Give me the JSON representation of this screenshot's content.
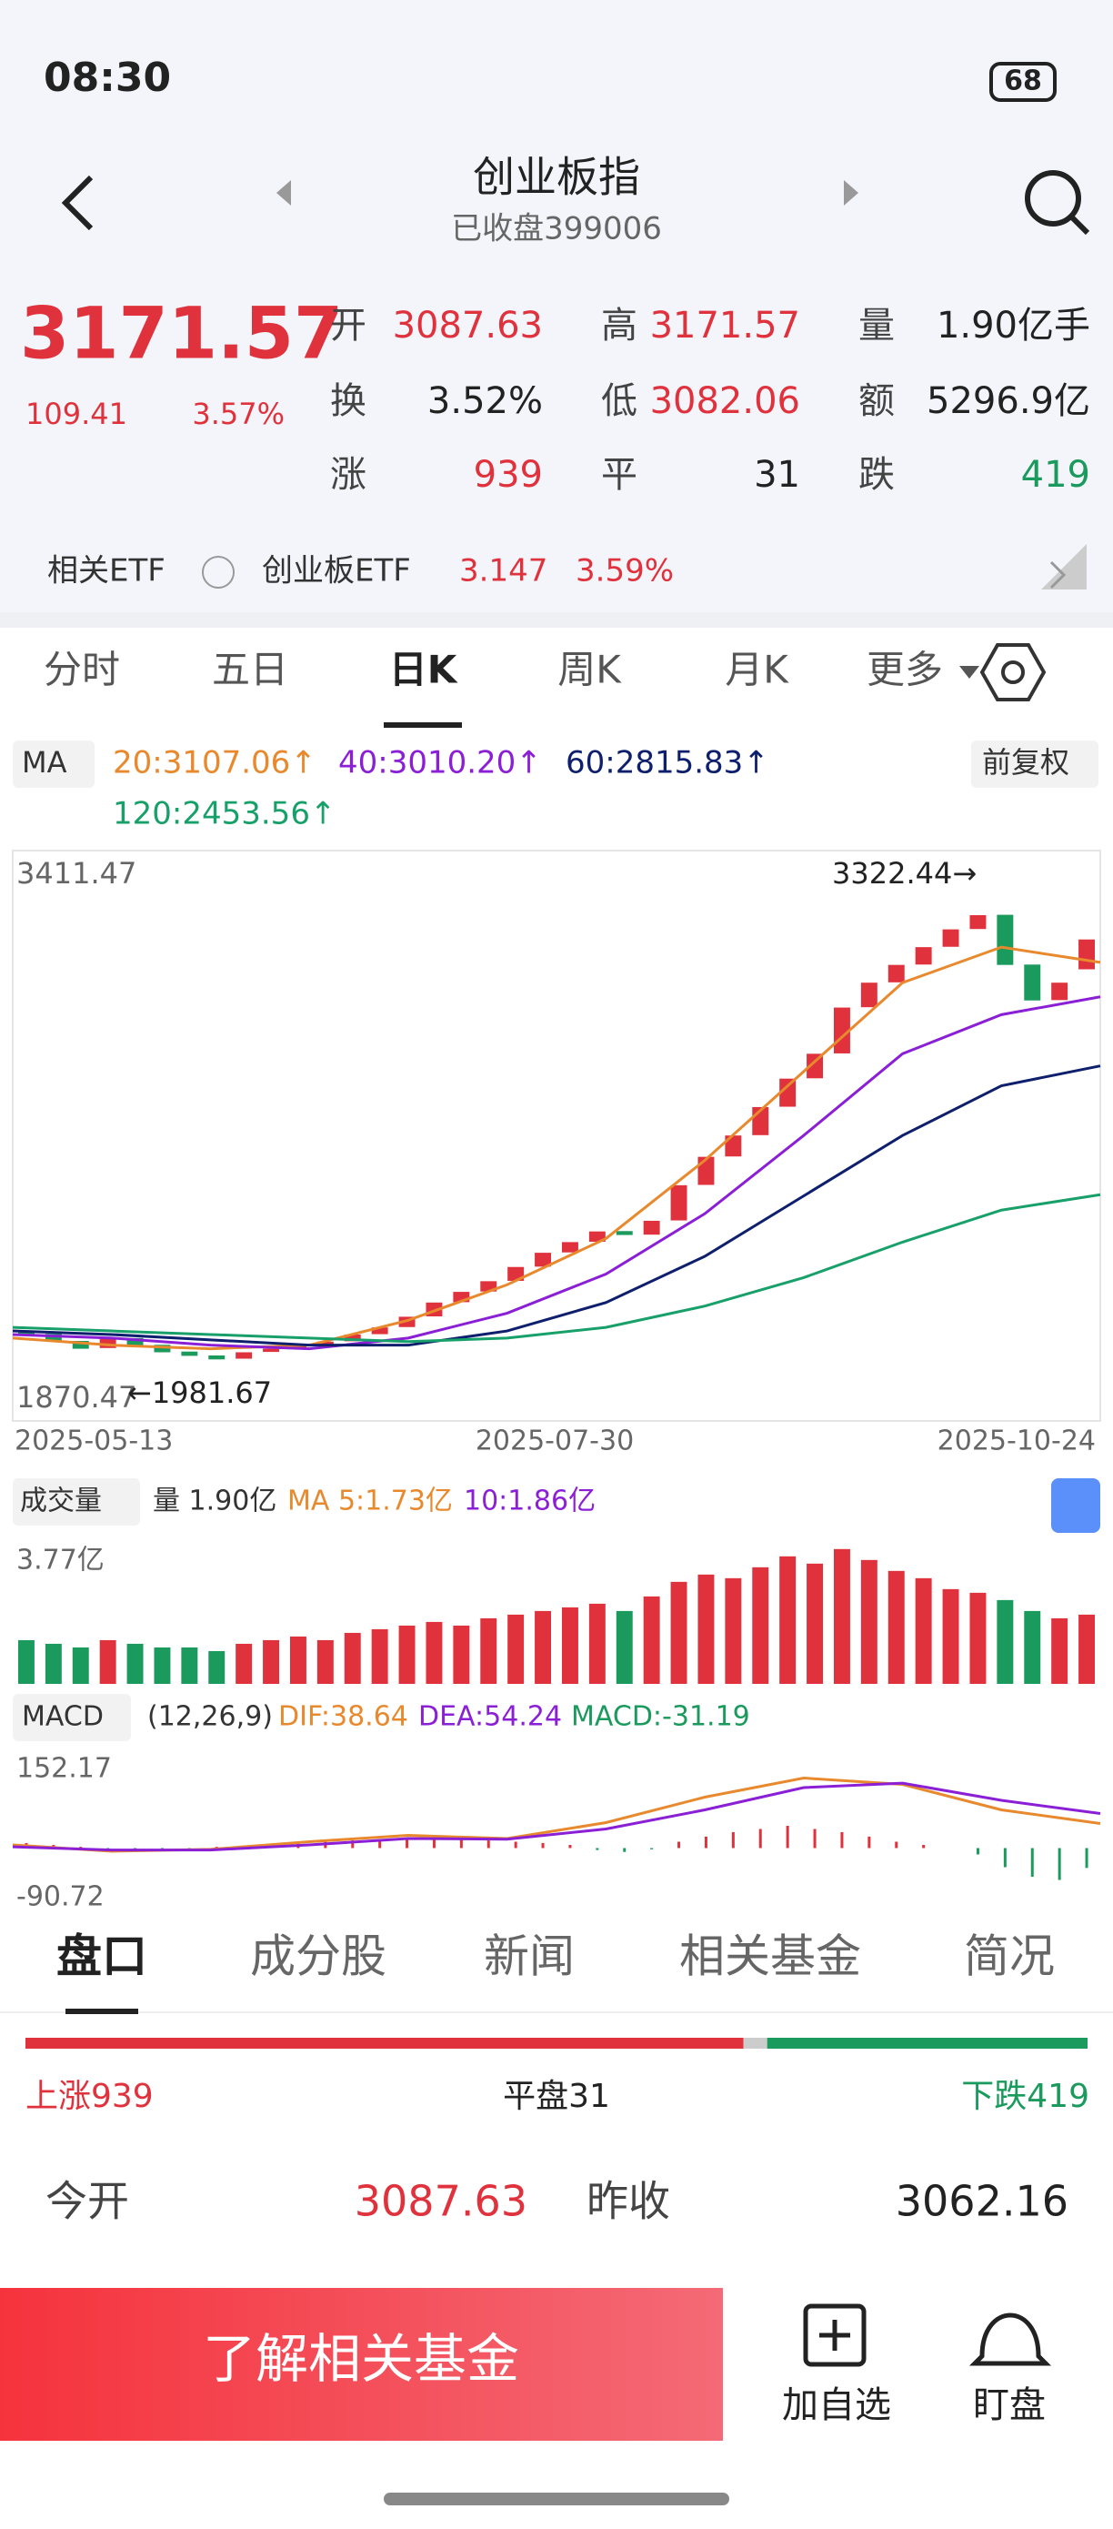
{
  "status": {
    "time": "08:30",
    "battery": "68"
  },
  "header": {
    "title": "创业板指",
    "subtitle": "已收盘399006"
  },
  "quote": {
    "price": "3171.57",
    "change": "109.41",
    "change_pct": "3.57%",
    "stats": [
      [
        "开",
        "3087.63"
      ],
      [
        "高",
        "3171.57"
      ],
      [
        "量",
        "1.90亿手"
      ],
      [
        "换",
        "3.52%"
      ],
      [
        "低",
        "3082.06"
      ],
      [
        "额",
        "5296.9亿"
      ],
      [
        "涨",
        "939"
      ],
      [
        "平",
        "31"
      ],
      [
        "跌",
        "419"
      ]
    ]
  },
  "etf": {
    "label": "相关ETF",
    "name": "创业板ETF",
    "price": "3.147",
    "pct": "3.59%"
  },
  "tabs": [
    "分时",
    "五日",
    "日K",
    "周K",
    "月K",
    "更多"
  ],
  "active_tab": 2,
  "adjust": "前复权",
  "chart_data": {
    "type": "candlestick",
    "ma_label": "MA",
    "ma": [
      {
        "name": "20:3107.06↑",
        "color": "#e8892d",
        "values": [
          2050,
          2030,
          2020,
          2030,
          2100,
          2200,
          2330,
          2550,
          2800,
          3050,
          3150,
          3107.06
        ]
      },
      {
        "name": "40:3010.20↑",
        "color": "#8a1fd6",
        "values": [
          2060,
          2050,
          2030,
          2020,
          2050,
          2120,
          2230,
          2400,
          2620,
          2850,
          2960,
          3010.2
        ]
      },
      {
        "name": "60:2815.83↑",
        "color": "#0e1f6e",
        "values": [
          2070,
          2060,
          2045,
          2030,
          2030,
          2070,
          2150,
          2280,
          2450,
          2620,
          2760,
          2815.83
        ]
      },
      {
        "name": "120:2453.56↑",
        "color": "#18a06a",
        "values": [
          2080,
          2070,
          2060,
          2050,
          2040,
          2050,
          2080,
          2140,
          2220,
          2320,
          2410,
          2453.56
        ]
      }
    ],
    "open": [
      2070,
      2062,
      2042,
      2022,
      2050,
      2031,
      2012,
      2001,
      1992,
      2011,
      2021,
      2031,
      2041,
      2061,
      2081,
      2111,
      2151,
      2181,
      2211,
      2251,
      2291,
      2321,
      2351,
      2341,
      2381,
      2481,
      2561,
      2621,
      2701,
      2781,
      2851,
      2981,
      3051,
      3101,
      3151,
      3201,
      3241,
      3101,
      3001,
      3087.63
    ],
    "close": [
      2060,
      2040,
      2020,
      2050,
      2030,
      2010,
      2000,
      1990,
      2010,
      2020,
      2030,
      2040,
      2060,
      2080,
      2110,
      2150,
      2180,
      2210,
      2250,
      2290,
      2320,
      2350,
      2340,
      2380,
      2480,
      2560,
      2620,
      2700,
      2780,
      2850,
      2980,
      3050,
      3100,
      3150,
      3200,
      3240,
      3100,
      3000,
      3050,
      3171.57
    ],
    "ylim": [
      1870.47,
      3411.47
    ],
    "yticks": [
      1870.47,
      3411.47
    ],
    "high_label": "3322.44→",
    "low_label": "←1981.67",
    "dates": [
      "2025-05-13",
      "2025-07-30",
      "2025-10-24"
    ],
    "volume": {
      "title": "成交量",
      "current": "量 1.90亿",
      "ma5": "MA 5:1.73亿",
      "ma10": "10:1.86亿",
      "ylim": [
        0,
        3.77
      ],
      "yticks": [
        {
          "value": 3.77,
          "label": "3.77亿"
        }
      ],
      "values": [
        1.2,
        1.1,
        1.0,
        1.2,
        1.1,
        1.0,
        1.0,
        0.9,
        1.1,
        1.2,
        1.3,
        1.2,
        1.4,
        1.5,
        1.6,
        1.7,
        1.6,
        1.8,
        1.9,
        2.0,
        2.1,
        2.2,
        2.0,
        2.4,
        2.8,
        3.0,
        2.9,
        3.2,
        3.5,
        3.3,
        3.7,
        3.4,
        3.1,
        2.9,
        2.6,
        2.5,
        2.3,
        2.0,
        1.8,
        1.9
      ]
    },
    "macd": {
      "title": "MACD",
      "params": "(12,26,9)",
      "dif_label": "DIF:38.64",
      "dea_label": "DEA:54.24",
      "macd_label": "MACD:-31.19",
      "ylim": [
        -90.72,
        152.17
      ],
      "yticks": [
        -90.72,
        152.17
      ],
      "hist": [
        8,
        5,
        2,
        -2,
        -4,
        -3,
        -1,
        2,
        4,
        6,
        8,
        10,
        12,
        14,
        16,
        18,
        15,
        12,
        10,
        8,
        5,
        -3,
        -6,
        -2,
        10,
        18,
        25,
        30,
        35,
        30,
        25,
        18,
        10,
        5,
        0,
        -10,
        -30,
        -45,
        -50,
        -31.19
      ],
      "dif": [
        5,
        -5,
        -2,
        10,
        20,
        15,
        40,
        80,
        110,
        100,
        60,
        38.64
      ],
      "dea": [
        2,
        -3,
        -3,
        5,
        15,
        14,
        30,
        60,
        95,
        102,
        75,
        54.24
      ]
    }
  },
  "bottom_tabs": [
    "盘口",
    "成分股",
    "新闻",
    "相关基金",
    "简况"
  ],
  "breadth": {
    "up": "上涨939",
    "flat": "平盘31",
    "down": "下跌419",
    "up_n": 939,
    "flat_n": 31,
    "down_n": 419
  },
  "open_row": [
    [
      "今开",
      "3087.63"
    ],
    [
      "昨收",
      "3062.16"
    ]
  ],
  "actions": {
    "cta": "了解相关基金",
    "watch": "加自选",
    "monitor": "盯盘"
  }
}
